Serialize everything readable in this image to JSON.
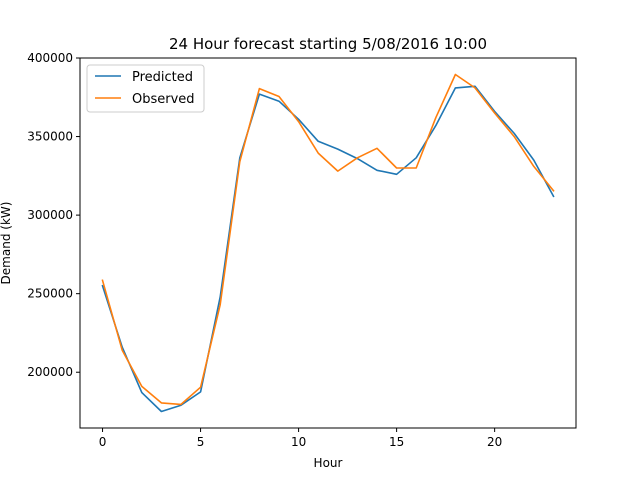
{
  "chart_data": {
    "type": "line",
    "title": "24 Hour forecast starting 5/08/2016  10:00",
    "xlabel": "Hour",
    "ylabel": "Demand (kW)",
    "xlim": [
      -1.15,
      24.15
    ],
    "ylim": [
      164500,
      400000
    ],
    "xticks": [
      0,
      5,
      10,
      15,
      20
    ],
    "xtick_labels": [
      "0",
      "5",
      "10",
      "15",
      "20"
    ],
    "yticks": [
      200000,
      250000,
      300000,
      350000,
      400000
    ],
    "ytick_labels": [
      "200000",
      "250000",
      "300000",
      "350000",
      "400000"
    ],
    "grid": false,
    "legend_position": "top-left",
    "x": [
      0,
      1,
      2,
      3,
      4,
      5,
      6,
      7,
      8,
      9,
      10,
      11,
      12,
      13,
      14,
      15,
      16,
      17,
      18,
      19,
      20,
      21,
      22,
      23
    ],
    "series": [
      {
        "name": "Predicted",
        "color": "#1f77b4",
        "values": [
          255000,
          216000,
          187000,
          175000,
          179000,
          187500,
          248000,
          336500,
          377000,
          372500,
          361000,
          347000,
          342000,
          336000,
          328500,
          326000,
          336500,
          357000,
          381000,
          382000,
          366000,
          352000,
          335000,
          312000
        ]
      },
      {
        "name": "Observed",
        "color": "#ff7f0e",
        "values": [
          258500,
          214000,
          191000,
          180500,
          179500,
          190500,
          243000,
          334000,
          380500,
          375500,
          359500,
          339500,
          328000,
          336500,
          342500,
          330000,
          330000,
          362000,
          389500,
          381000,
          365000,
          350000,
          331000,
          315500
        ]
      }
    ]
  }
}
